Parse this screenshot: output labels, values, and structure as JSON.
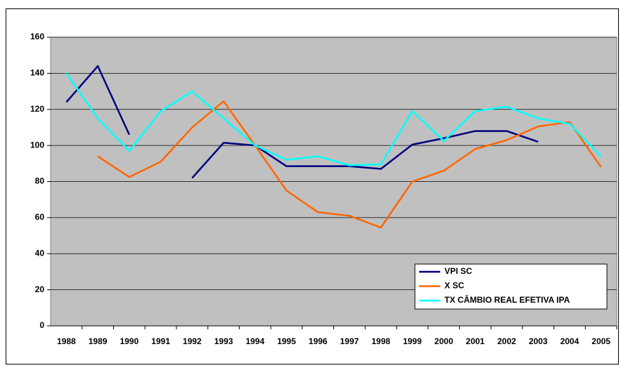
{
  "chart_data": {
    "type": "line",
    "categories": [
      "1988",
      "1989",
      "1990",
      "1991",
      "1992",
      "1993",
      "1994",
      "1995",
      "1996",
      "1997",
      "1998",
      "1999",
      "2000",
      "2001",
      "2002",
      "2003",
      "2004",
      "2005"
    ],
    "series": [
      {
        "name": "VPI SC",
        "color": "#000080",
        "values": [
          124,
          144,
          106,
          null,
          82,
          101.5,
          100,
          88.5,
          88.5,
          88.5,
          87,
          100.5,
          104,
          108,
          108,
          102,
          null,
          null
        ]
      },
      {
        "name": "X SC",
        "color": "#ff6600",
        "values": [
          null,
          94,
          82.5,
          91,
          110,
          124.5,
          100,
          75,
          63,
          61,
          54.5,
          80,
          86,
          98,
          103,
          110.5,
          113,
          88
        ]
      },
      {
        "name": "TX CÂMBIO REAL EFETIVA IPA",
        "color": "#00ffff",
        "values": [
          140,
          115,
          97,
          119,
          130,
          115,
          100,
          92,
          94,
          89,
          89.5,
          119,
          102.5,
          119,
          121.5,
          115,
          112,
          94
        ]
      }
    ],
    "ylim": [
      0,
      160
    ],
    "yticks": [
      0,
      20,
      40,
      60,
      80,
      100,
      120,
      140,
      160
    ],
    "grid": true,
    "legend": "lower-right"
  }
}
